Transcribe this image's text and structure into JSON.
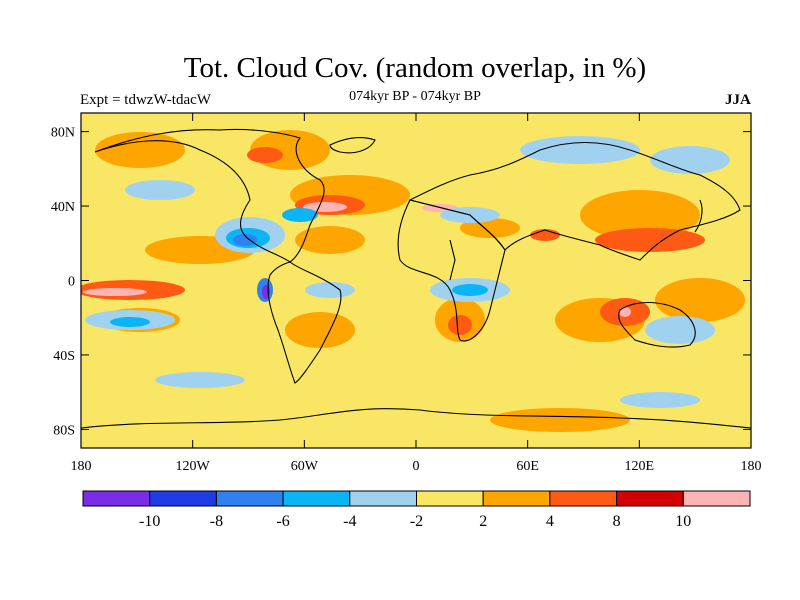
{
  "header": {
    "title": "Tot. Cloud Cov. (random overlap, in %)",
    "left_label": "Expt = tdwzW-tdacW",
    "center_label": "074kyr BP - 074kyr BP",
    "right_label": "JJA"
  },
  "map": {
    "lat_labels": [
      "80N",
      "40N",
      "0",
      "40S",
      "80S"
    ],
    "lat_values": [
      80,
      40,
      0,
      -40,
      -80
    ],
    "lon_labels": [
      "180",
      "120W",
      "60W",
      "0",
      "60E",
      "120E",
      "180"
    ],
    "lon_values": [
      -180,
      -120,
      -60,
      0,
      60,
      120,
      180
    ],
    "lat_range": [
      -90,
      90
    ],
    "lon_range": [
      -180,
      180
    ],
    "background_color": "#fae665"
  },
  "colorbar": {
    "colors": [
      "#7a2de6",
      "#1e3ce6",
      "#2e82f0",
      "#0ab4f5",
      "#a0d2f0",
      "#fae665",
      "#ffa500",
      "#ff5a14",
      "#d20000",
      "#ffb4b4"
    ],
    "labels": [
      "-10",
      "-8",
      "-6",
      "-4",
      "-2",
      "2",
      "4",
      "8",
      "10"
    ]
  }
}
